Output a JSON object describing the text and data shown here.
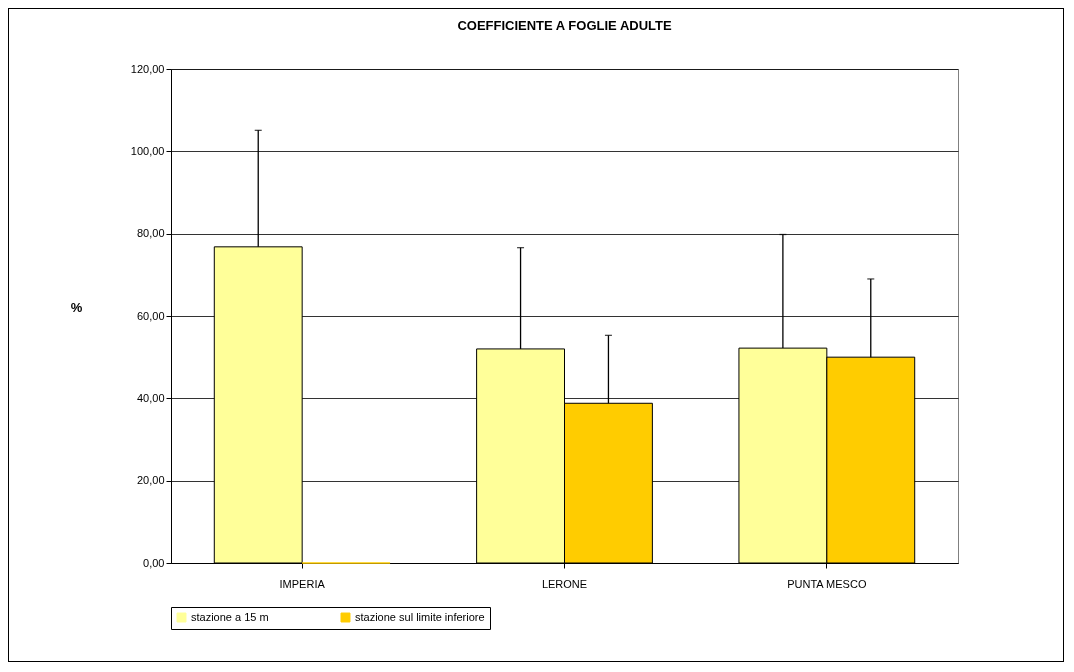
{
  "chart_data": {
    "type": "bar",
    "title": "COEFFICIENTE A FOGLIE ADULTE",
    "ylabel": "%",
    "categories": [
      "IMPERIA",
      "LERONE",
      "PUNTA MESCO"
    ],
    "series": [
      {
        "name": "stazione a 15 m",
        "color": "#ffff99",
        "values": [
          76.8,
          52.0,
          52.2
        ],
        "errors": [
          [
            76.8,
            105.1
          ],
          [
            52.0,
            76.6
          ],
          [
            52.2,
            79.8
          ]
        ]
      },
      {
        "name": "stazione sul limite inferiore",
        "color": "#ffcc00",
        "values": [
          0,
          38.8,
          50.0
        ],
        "errors": [
          null,
          [
            38.8,
            55.3
          ],
          [
            50.0,
            69.0
          ]
        ]
      }
    ],
    "ylim": [
      0,
      120
    ],
    "yticks": [
      {
        "value": 0,
        "label": "0,00"
      },
      {
        "value": 20,
        "label": "20,00"
      },
      {
        "value": 40,
        "label": "40,00"
      },
      {
        "value": 60,
        "label": "60,00"
      },
      {
        "value": 80,
        "label": "80,00"
      },
      {
        "value": 100,
        "label": "100,00"
      },
      {
        "value": 120,
        "label": "120,00"
      }
    ],
    "grid": "y",
    "legend": "bottom"
  }
}
